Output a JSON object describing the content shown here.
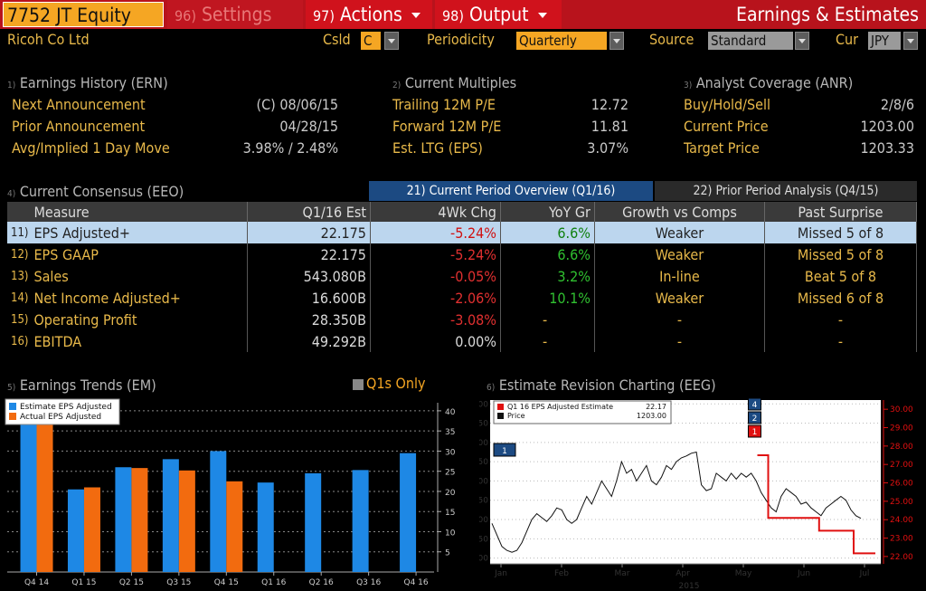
{
  "header": {
    "ticker": "7752 JT Equity",
    "menus": [
      {
        "num": "96)",
        "label": "Settings"
      },
      {
        "num": "97)",
        "label": "Actions"
      },
      {
        "num": "98)",
        "label": "Output"
      }
    ],
    "title": "Earnings & Estimates"
  },
  "subbar": {
    "company": "Ricoh Co Ltd",
    "csld_label": "Csld",
    "csld_value": "C",
    "periodicity_label": "Periodicity",
    "periodicity_value": "Quarterly",
    "source_label": "Source",
    "source_value": "Standard",
    "cur_label": "Cur",
    "cur_value": "JPY"
  },
  "earnings_history": {
    "num": "1)",
    "title": "Earnings History (ERN)",
    "rows": [
      {
        "label": "Next Announcement",
        "value": "(C)  08/06/15"
      },
      {
        "label": "Prior Announcement",
        "value": "04/28/15"
      },
      {
        "label": "Avg/Implied 1 Day Move",
        "value": "3.98% / 2.48%"
      }
    ]
  },
  "current_multiples": {
    "num": "2)",
    "title": "Current Multiples",
    "rows": [
      {
        "label": "Trailing 12M P/E",
        "value": "12.72"
      },
      {
        "label": "Forward 12M P/E",
        "value": "11.81"
      },
      {
        "label": "Est. LTG (EPS)",
        "value": "3.07%"
      }
    ]
  },
  "analyst_coverage": {
    "num": "3)",
    "title": "Analyst Coverage (ANR)",
    "rows": [
      {
        "label": "Buy/Hold/Sell",
        "value": "2/8/6"
      },
      {
        "label": "Current Price",
        "value": "1203.00"
      },
      {
        "label": "Target Price",
        "value": "1203.33"
      }
    ]
  },
  "consensus": {
    "num": "4)",
    "title": "Current Consensus (EEO)",
    "tab_current": "21) Current Period Overview (Q1/16)",
    "tab_prior": "22) Prior Period Analysis (Q4/15)",
    "columns": [
      "Measure",
      "Q1/16 Est",
      "4Wk Chg",
      "YoY Gr",
      "Growth vs Comps",
      "Past Surprise"
    ],
    "rows": [
      {
        "idx": "11)",
        "measure": "EPS Adjusted+",
        "est": "22.175",
        "chg": "-5.24%",
        "yoy": "6.6%",
        "comps": "Weaker",
        "surprise": "Missed 5 of 8"
      },
      {
        "idx": "12)",
        "measure": "EPS GAAP",
        "est": "22.175",
        "chg": "-5.24%",
        "yoy": "6.6%",
        "comps": "Weaker",
        "surprise": "Missed 5 of 8"
      },
      {
        "idx": "13)",
        "measure": "Sales",
        "est": "543.080B",
        "chg": "-0.05%",
        "yoy": "3.2%",
        "comps": "In-line",
        "surprise": "Beat 5 of 8"
      },
      {
        "idx": "14)",
        "measure": "Net Income Adjusted+",
        "est": "16.600B",
        "chg": "-2.06%",
        "yoy": "10.1%",
        "comps": "Weaker",
        "surprise": "Missed 6 of 8"
      },
      {
        "idx": "15)",
        "measure": "Operating Profit",
        "est": "28.350B",
        "chg": "-3.08%",
        "yoy": "-",
        "comps": "-",
        "surprise": "-"
      },
      {
        "idx": "16)",
        "measure": "EBITDA",
        "est": "49.292B",
        "chg": "0.00%",
        "yoy": "-",
        "comps": "-",
        "surprise": "-"
      }
    ]
  },
  "earnings_trends": {
    "num": "5)",
    "title": "Earnings Trends (EM)",
    "toggle_label": "Q1s Only"
  },
  "estimate_revision": {
    "num": "6)",
    "title": "Estimate Revision Charting (EEG)"
  },
  "colors": {
    "bloomberg_red": "#b8131c",
    "amber": "#e8b94a",
    "orange": "#f5a623",
    "estimate_blue": "#1e88e5",
    "actual_orange": "#f26b0f",
    "revision_red": "#e01010"
  },
  "chart_data": [
    {
      "type": "bar",
      "categories": [
        "Q4 14",
        "Q1 15",
        "Q2 15",
        "Q3 15",
        "Q4 15",
        "Q1 16",
        "Q2 16",
        "Q3 16",
        "Q4 16"
      ],
      "series": [
        {
          "name": "Estimate EPS Adjusted",
          "color": "#1e88e5",
          "values": [
            39,
            20.5,
            26,
            28,
            30,
            22.2,
            24.5,
            25.3,
            29.5
          ]
        },
        {
          "name": "Actual EPS Adjusted",
          "color": "#f26b0f",
          "values": [
            38.5,
            21,
            25.8,
            25.2,
            22.5,
            null,
            null,
            null,
            null
          ]
        }
      ],
      "yticks": [
        5,
        10,
        15,
        20,
        25,
        30,
        35,
        40
      ],
      "ylim": [
        0,
        42
      ],
      "legend": "top-left"
    },
    {
      "type": "line",
      "x_labels": [
        "Jan",
        "Feb",
        "Mar",
        "Apr",
        "May",
        "Jun",
        "Jul"
      ],
      "year_label": "2015",
      "legend": [
        {
          "name": "Q1 16 EPS Adjusted Estimate",
          "value": "22.17",
          "color": "#e01010"
        },
        {
          "name": "Price",
          "value": "1203.00",
          "color": "#111111"
        }
      ],
      "y_left_ticks": [
        1100,
        1150,
        1200,
        1250,
        1300,
        1350,
        1400,
        1450,
        1500
      ],
      "y_left_lim": [
        1085,
        1510
      ],
      "y_right_ticks": [
        "22.00",
        "23.00",
        "24.00",
        "25.00",
        "26.00",
        "27.00",
        "28.00",
        "29.00",
        "30.00"
      ],
      "y_right_lim": [
        21.6,
        30.5
      ],
      "price": [
        1190,
        1160,
        1130,
        1120,
        1115,
        1120,
        1140,
        1170,
        1200,
        1215,
        1205,
        1195,
        1210,
        1230,
        1225,
        1200,
        1190,
        1200,
        1230,
        1260,
        1240,
        1270,
        1300,
        1280,
        1260,
        1300,
        1350,
        1320,
        1330,
        1300,
        1320,
        1340,
        1300,
        1290,
        1310,
        1340,
        1330,
        1350,
        1360,
        1365,
        1372,
        1375,
        1290,
        1275,
        1280,
        1320,
        1310,
        1300,
        1320,
        1305,
        1320,
        1310,
        1320,
        1300,
        1270,
        1250,
        1230,
        1220,
        1260,
        1280,
        1270,
        1260,
        1240,
        1245,
        1230,
        1220,
        1210,
        1230,
        1240,
        1250,
        1260,
        1250,
        1225,
        1210,
        1203
      ],
      "estimate": [
        {
          "x": 0.735,
          "y": 27.5
        },
        {
          "x": 0.765,
          "y": 27.5
        },
        {
          "x": 0.765,
          "y": 24.1
        },
        {
          "x": 0.81,
          "y": 24.1
        },
        {
          "x": 0.81,
          "y": 24.1
        },
        {
          "x": 0.905,
          "y": 24.1
        },
        {
          "x": 0.905,
          "y": 23.4
        },
        {
          "x": 1.0,
          "y": 23.4
        },
        {
          "x": 1.0,
          "y": 22.17
        },
        {
          "x": 1.15,
          "y": 22.17
        }
      ],
      "markers": [
        "4",
        "2",
        "1"
      ],
      "left_marker": "1"
    }
  ]
}
